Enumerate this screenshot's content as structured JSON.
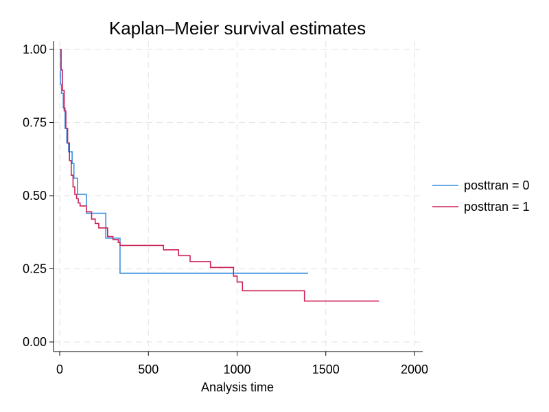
{
  "chart_data": {
    "type": "line",
    "step": true,
    "title": "Kaplan–Meier survival estimates",
    "xlabel": "Analysis time",
    "ylabel": "",
    "xlim": [
      0,
      2000
    ],
    "ylim": [
      0,
      1
    ],
    "xticks": [
      0,
      500,
      1000,
      1500,
      2000
    ],
    "xtick_labels": [
      "0",
      "500",
      "1000",
      "1500",
      "2000"
    ],
    "yticks": [
      0,
      0.25,
      0.5,
      0.75,
      1
    ],
    "ytick_labels": [
      "0.00",
      "0.25",
      "0.50",
      "0.75",
      "1.00"
    ],
    "grid": true,
    "legend_position": "right",
    "series": [
      {
        "name": "posttran = 0",
        "color": "#3a8dde",
        "x": [
          0,
          5,
          10,
          20,
          30,
          40,
          50,
          60,
          70,
          80,
          100,
          150,
          260,
          340,
          1400
        ],
        "y": [
          1.0,
          0.88,
          0.85,
          0.8,
          0.73,
          0.68,
          0.65,
          0.65,
          0.61,
          0.56,
          0.505,
          0.44,
          0.355,
          0.235,
          0.235
        ]
      },
      {
        "name": "posttran = 1",
        "color": "#cc2255",
        "x": [
          0,
          8,
          15,
          25,
          35,
          45,
          55,
          65,
          75,
          85,
          95,
          105,
          115,
          150,
          180,
          200,
          220,
          270,
          300,
          330,
          340,
          585,
          670,
          735,
          850,
          980,
          1000,
          1030,
          1380,
          1800
        ],
        "y": [
          1.0,
          0.93,
          0.86,
          0.79,
          0.73,
          0.68,
          0.62,
          0.57,
          0.53,
          0.505,
          0.49,
          0.475,
          0.465,
          0.445,
          0.42,
          0.405,
          0.39,
          0.36,
          0.35,
          0.34,
          0.33,
          0.315,
          0.295,
          0.275,
          0.255,
          0.225,
          0.205,
          0.175,
          0.14,
          0.14
        ]
      }
    ]
  }
}
